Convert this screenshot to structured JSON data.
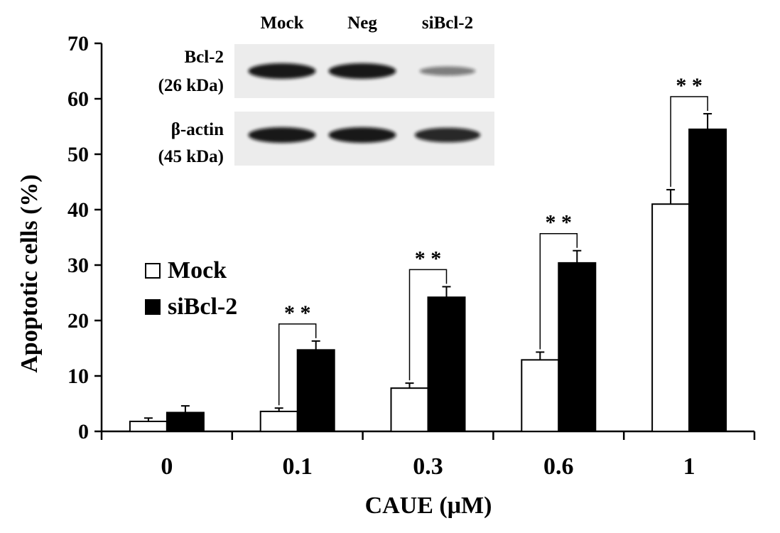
{
  "chart_data": {
    "type": "bar",
    "categories": [
      "0",
      "0.1",
      "0.3",
      "0.6",
      "1"
    ],
    "series": [
      {
        "name": "Mock",
        "values": [
          1.8,
          3.6,
          7.8,
          12.9,
          41.0
        ],
        "errors": [
          0.6,
          0.6,
          0.9,
          1.4,
          2.6
        ],
        "color": "#ffffff"
      },
      {
        "name": "siBcl-2",
        "values": [
          3.4,
          14.7,
          24.2,
          30.4,
          54.5
        ],
        "errors": [
          1.2,
          1.6,
          1.9,
          2.2,
          2.8
        ],
        "color": "#000000"
      }
    ],
    "xlabel": "CAUE (μM)",
    "ylabel": "Apoptotic cells (%)",
    "ylim": [
      0,
      70
    ],
    "yticks": [
      "0",
      "10",
      "20",
      "30",
      "40",
      "50",
      "60",
      "70"
    ],
    "grid": false,
    "legend_position": "left",
    "significance": [
      {
        "category": "0.1",
        "label": "* *"
      },
      {
        "category": "0.3",
        "label": "* *"
      },
      {
        "category": "0.6",
        "label": "* *"
      },
      {
        "category": "1",
        "label": "* *"
      }
    ]
  },
  "inset": {
    "lanes": [
      "Mock",
      "Neg",
      "siBcl-2"
    ],
    "bands": [
      {
        "label": "Bcl-2",
        "sublabel": "(26 kDa)",
        "intensity": [
          1.0,
          1.0,
          0.35
        ]
      },
      {
        "label": "β-actin",
        "sublabel": "(45 kDa)",
        "intensity": [
          1.0,
          1.0,
          0.9
        ]
      }
    ]
  }
}
